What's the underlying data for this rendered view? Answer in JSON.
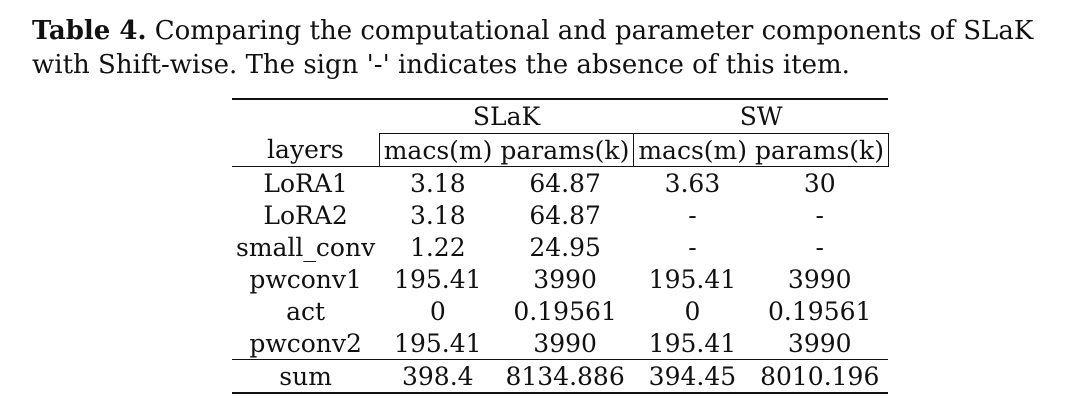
{
  "caption": {
    "label": "Table 4.",
    "text": " Comparing the computational and parameter components of SLaK with Shift-wise. The sign '-' indicates the absence of this item."
  },
  "table": {
    "groups": [
      "SLaK",
      "SW"
    ],
    "columns": [
      "layers",
      "macs(m)",
      "params(k)",
      "macs(m)",
      "params(k)"
    ],
    "rows": [
      [
        "LoRA1",
        "3.18",
        "64.87",
        "3.63",
        "30"
      ],
      [
        "LoRA2",
        "3.18",
        "64.87",
        "-",
        "-"
      ],
      [
        "small_conv",
        "1.22",
        "24.95",
        "-",
        "-"
      ],
      [
        "pwconv1",
        "195.41",
        "3990",
        "195.41",
        "3990"
      ],
      [
        "act",
        "0",
        "0.19561",
        "0",
        "0.19561"
      ],
      [
        "pwconv2",
        "195.41",
        "3990",
        "195.41",
        "3990"
      ]
    ],
    "sum_row": [
      "sum",
      "398.4",
      "8134.886",
      "394.45",
      "8010.196"
    ]
  }
}
